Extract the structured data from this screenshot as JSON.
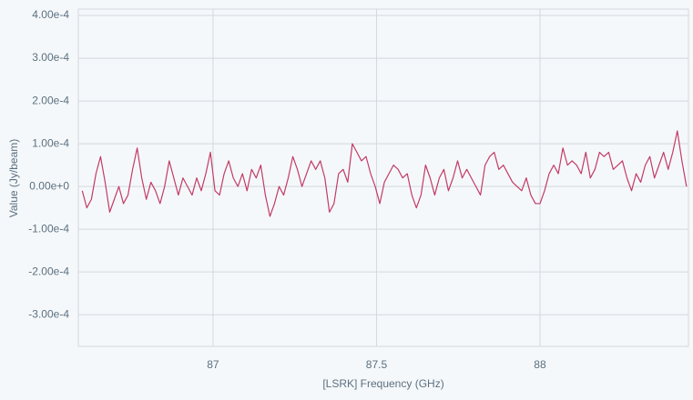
{
  "chart_data": {
    "type": "line",
    "x_label": "[LSRK] Frequency (GHz)",
    "y_label": "Value (Jy/beam)",
    "x": [
      86.6,
      86.614,
      86.628,
      86.642,
      86.656,
      86.67,
      86.684,
      86.698,
      86.712,
      86.726,
      86.74,
      86.754,
      86.768,
      86.782,
      86.796,
      86.81,
      86.824,
      86.838,
      86.852,
      86.866,
      86.88,
      86.894,
      86.908,
      86.922,
      86.936,
      86.95,
      86.964,
      86.978,
      86.992,
      87.006,
      87.02,
      87.034,
      87.048,
      87.062,
      87.076,
      87.09,
      87.104,
      87.118,
      87.132,
      87.146,
      87.16,
      87.174,
      87.188,
      87.202,
      87.216,
      87.23,
      87.244,
      87.258,
      87.272,
      87.286,
      87.3,
      87.314,
      87.328,
      87.342,
      87.356,
      87.37,
      87.384,
      87.398,
      87.412,
      87.426,
      87.44,
      87.454,
      87.468,
      87.482,
      87.496,
      87.51,
      87.524,
      87.538,
      87.552,
      87.566,
      87.58,
      87.594,
      87.608,
      87.622,
      87.636,
      87.65,
      87.664,
      87.678,
      87.692,
      87.706,
      87.72,
      87.734,
      87.748,
      87.762,
      87.776,
      87.79,
      87.804,
      87.818,
      87.832,
      87.846,
      87.86,
      87.874,
      87.888,
      87.902,
      87.916,
      87.93,
      87.944,
      87.958,
      87.972,
      87.986,
      88,
      88.014,
      88.028,
      88.042,
      88.056,
      88.07,
      88.084,
      88.098,
      88.112,
      88.126,
      88.14,
      88.154,
      88.168,
      88.182,
      88.196,
      88.21,
      88.224,
      88.238,
      88.252,
      88.266,
      88.28,
      88.294,
      88.308,
      88.322,
      88.336,
      88.35,
      88.364,
      88.378,
      88.392,
      88.406,
      88.42,
      88.434,
      88.448
    ],
    "values": [
      -1e-05,
      -5e-05,
      -3e-05,
      3e-05,
      7e-05,
      1e-05,
      -6e-05,
      -3e-05,
      0,
      -4e-05,
      -2e-05,
      4e-05,
      9e-05,
      2e-05,
      -3e-05,
      1e-05,
      -1e-05,
      -4e-05,
      0,
      6e-05,
      2e-05,
      -2e-05,
      2e-05,
      0,
      -2e-05,
      2e-05,
      -1e-05,
      3e-05,
      8e-05,
      -1e-05,
      -2e-05,
      3e-05,
      6e-05,
      2e-05,
      0,
      3e-05,
      -1e-05,
      4e-05,
      2e-05,
      5e-05,
      -2e-05,
      -7e-05,
      -4e-05,
      0,
      -2e-05,
      2e-05,
      7e-05,
      4e-05,
      0,
      3e-05,
      6e-05,
      4e-05,
      6e-05,
      2e-05,
      -6e-05,
      -4e-05,
      3e-05,
      4e-05,
      1e-05,
      0.0001,
      8e-05,
      6e-05,
      7e-05,
      3e-05,
      0,
      -4e-05,
      1e-05,
      3e-05,
      5e-05,
      4e-05,
      2e-05,
      3e-05,
      -2e-05,
      -5e-05,
      -2e-05,
      5e-05,
      2e-05,
      -2e-05,
      2e-05,
      4e-05,
      -1e-05,
      2e-05,
      6e-05,
      2e-05,
      4e-05,
      2e-05,
      0,
      -2e-05,
      5e-05,
      7e-05,
      8e-05,
      4e-05,
      5e-05,
      3e-05,
      1e-05,
      0,
      -1e-05,
      2e-05,
      -2e-05,
      -4e-05,
      -4e-05,
      -1e-05,
      3e-05,
      5e-05,
      3e-05,
      9e-05,
      5e-05,
      6e-05,
      5e-05,
      3e-05,
      8e-05,
      2e-05,
      4e-05,
      8e-05,
      7e-05,
      8e-05,
      4e-05,
      5e-05,
      6e-05,
      2e-05,
      -1e-05,
      3e-05,
      1e-05,
      5e-05,
      7e-05,
      2e-05,
      5e-05,
      8e-05,
      4e-05,
      8e-05,
      0.00013,
      6e-05,
      0
    ],
    "color": "#c23b66",
    "xlim": [
      86.588,
      88.454
    ],
    "ylim": [
      -0.000374,
      0.000415
    ],
    "xticks": [
      87,
      87.5,
      88
    ],
    "yticks": [
      {
        "value": 0.0004,
        "label": "4.00e-4"
      },
      {
        "value": 0.0003,
        "label": "3.00e-4"
      },
      {
        "value": 0.0002,
        "label": "2.00e-4"
      },
      {
        "value": 0.0001,
        "label": "1.00e-4"
      },
      {
        "value": 0,
        "label": "0.00e+0"
      },
      {
        "value": -0.0001,
        "label": "-1.00e-4"
      },
      {
        "value": -0.0002,
        "label": "-2.00e-4"
      },
      {
        "value": -0.0003,
        "label": "-3.00e-4"
      }
    ],
    "grid": true
  }
}
